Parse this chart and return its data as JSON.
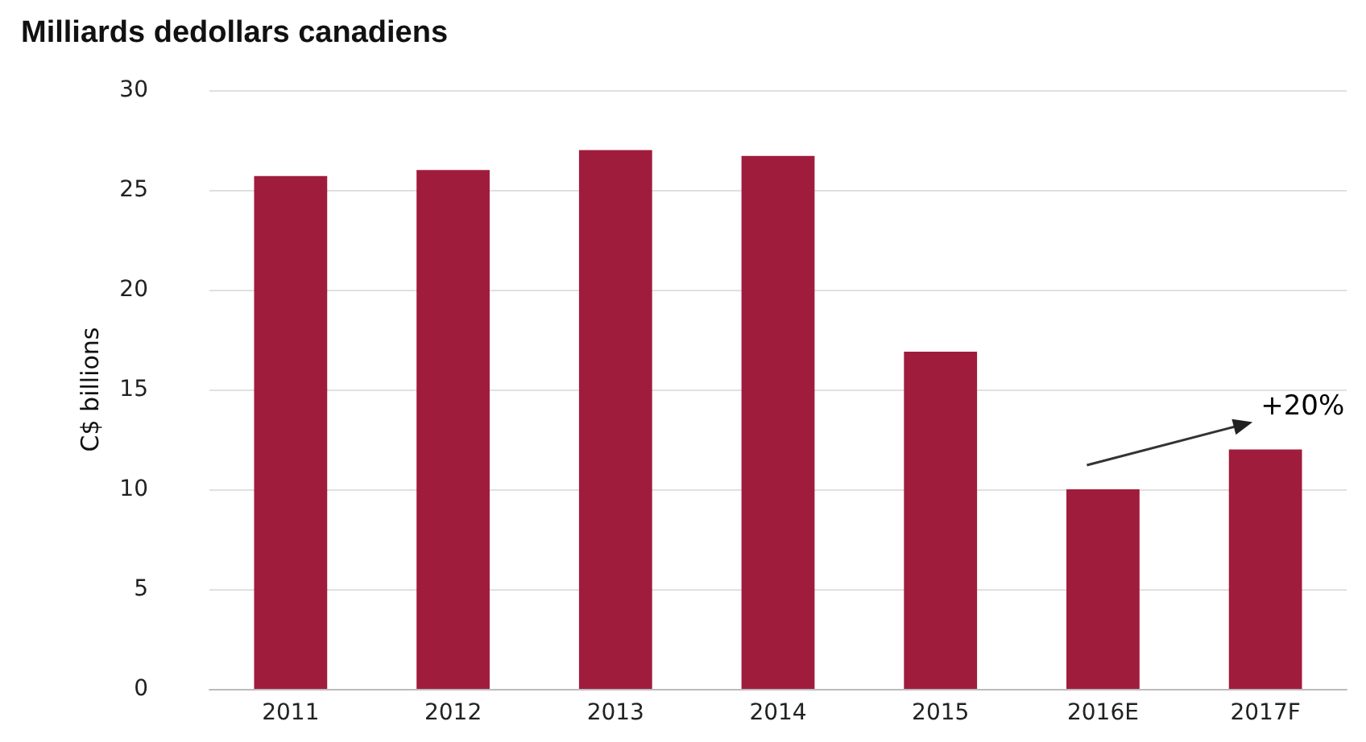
{
  "chart_data": {
    "type": "bar",
    "title": "Milliards dedollars canadiens",
    "ylabel": "C$ billions",
    "categories": [
      "2011",
      "2012",
      "2013",
      "2014",
      "2015",
      "2016E",
      "2017F"
    ],
    "values": [
      25.7,
      26.0,
      27.0,
      26.7,
      16.9,
      10.0,
      12.0
    ],
    "color": "#a01c3c",
    "ylim": [
      0,
      30
    ],
    "yticks": [
      0,
      5,
      10,
      15,
      20,
      25,
      30
    ],
    "grid": "y",
    "annotations": [
      "+20%"
    ]
  }
}
